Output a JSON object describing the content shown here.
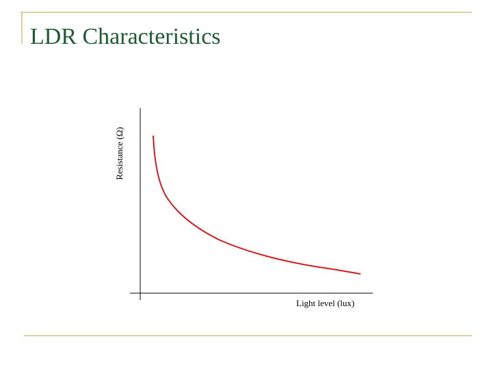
{
  "slide": {
    "title": "LDR Characteristics",
    "graph": {
      "y_label": "Resistance (Ω)",
      "x_label": "Light level (lux)"
    }
  }
}
